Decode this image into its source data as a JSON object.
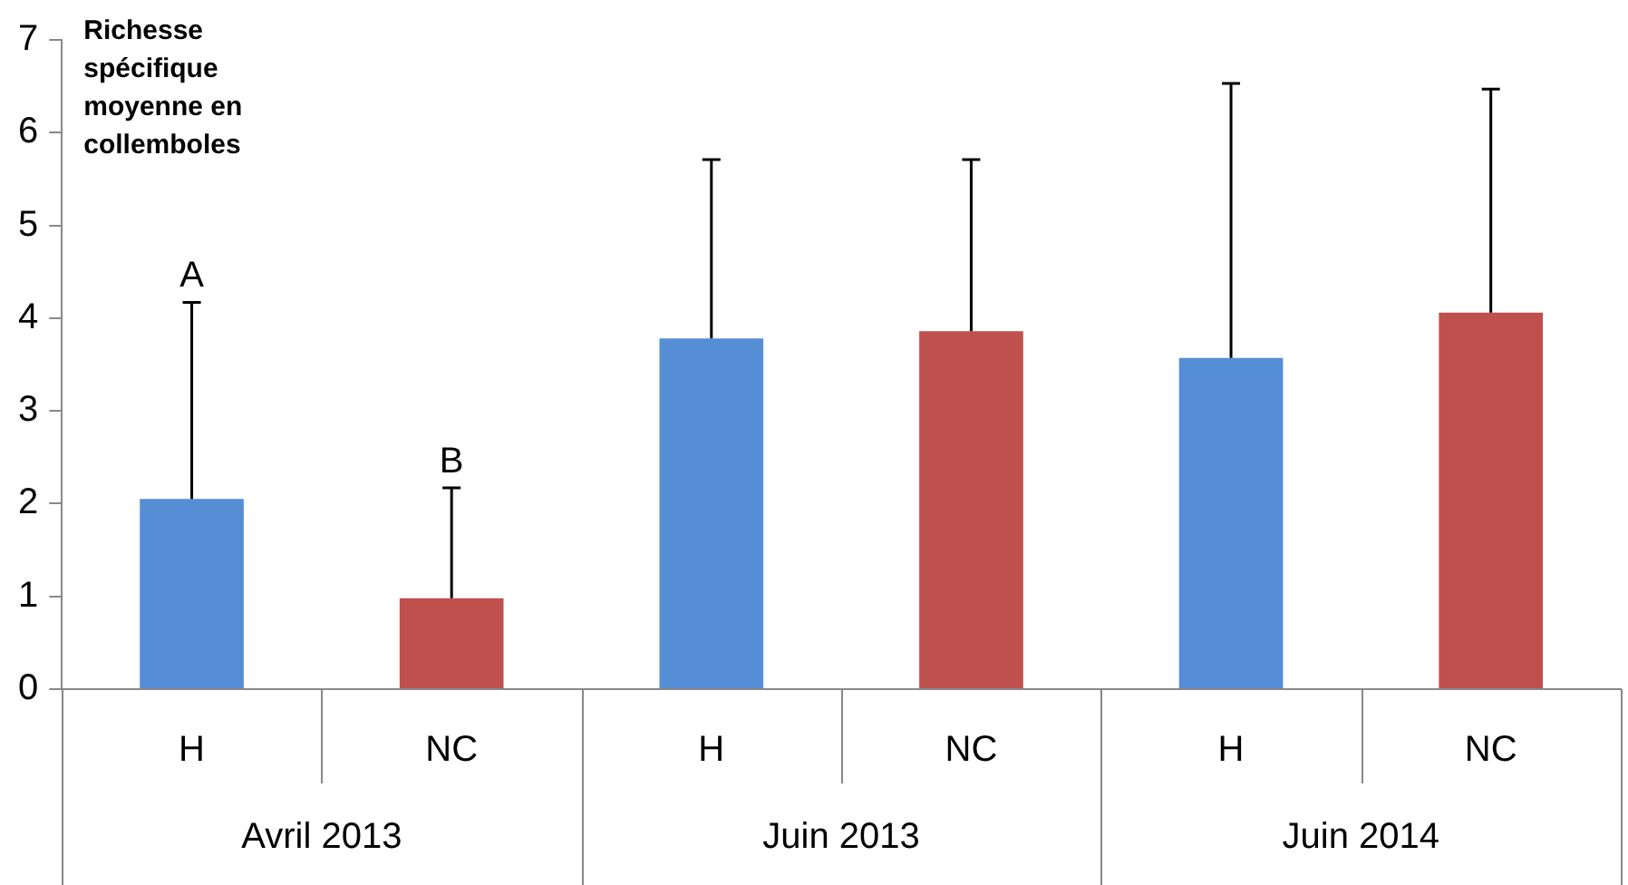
{
  "chart_data": {
    "type": "bar",
    "ylabel": "Richesse spécifique moyenne en collemboles",
    "categories": [
      "H",
      "NC",
      "H",
      "NC",
      "H",
      "NC"
    ],
    "annotations": [
      "Avril 2013",
      "Juin 2013",
      "Juin 2014",
      {
        "text": "A",
        "y": 4.17
      },
      {
        "text": "B",
        "y": 2.17
      }
    ],
    "values": [
      2.05,
      0.98,
      3.78,
      3.86,
      3.57,
      4.06
    ],
    "colors": [
      "#558ed5",
      "#c0504d",
      "#558ed5",
      "#c0504d",
      "#558ed5",
      "#c0504d"
    ],
    "errors": [
      [
        2.05,
        4.17
      ],
      [
        0.98,
        2.17
      ],
      [
        3.78,
        5.71
      ],
      [
        3.86,
        5.71
      ],
      [
        3.57,
        6.53
      ],
      [
        4.06,
        6.47
      ]
    ],
    "ylim": [
      0,
      7
    ],
    "yticks": [
      0,
      1,
      2,
      3,
      4,
      5,
      6,
      7
    ],
    "grid": false,
    "legend": false
  }
}
